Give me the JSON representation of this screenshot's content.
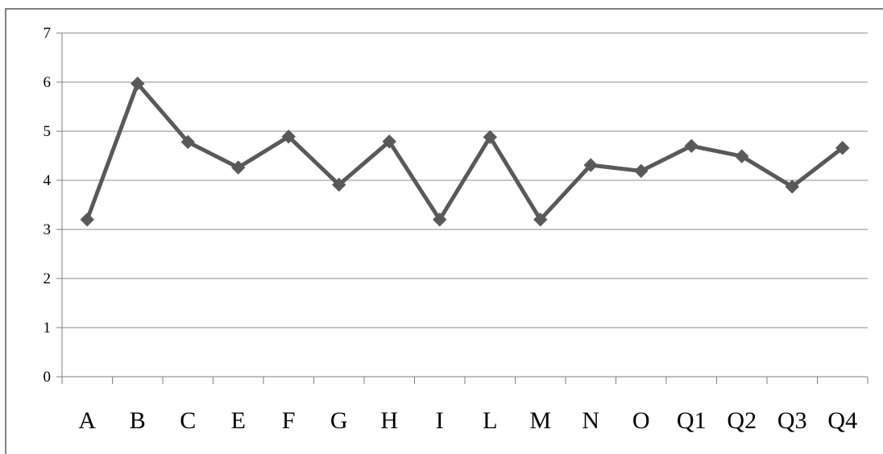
{
  "chart_data": {
    "type": "line",
    "title": "",
    "xlabel": "",
    "ylabel": "",
    "categories": [
      "A",
      "B",
      "C",
      "E",
      "F",
      "G",
      "H",
      "I",
      "L",
      "M",
      "N",
      "O",
      "Q1",
      "Q2",
      "Q3",
      "Q4"
    ],
    "series": [
      {
        "values": [
          3.2,
          5.97,
          4.78,
          4.26,
          4.89,
          3.91,
          4.79,
          3.2,
          4.88,
          3.2,
          4.31,
          4.19,
          4.7,
          4.49,
          3.87,
          4.66
        ],
        "marker": "diamond"
      }
    ],
    "ylim": [
      0,
      7
    ],
    "yticks": [
      0,
      1,
      2,
      3,
      4,
      5,
      6,
      7
    ],
    "grid": true,
    "legend": "none",
    "colors": {
      "line": "#595959",
      "grid": "#8c8c8c",
      "axis": "#7f7f7f",
      "border": "#7f7f7f"
    }
  }
}
